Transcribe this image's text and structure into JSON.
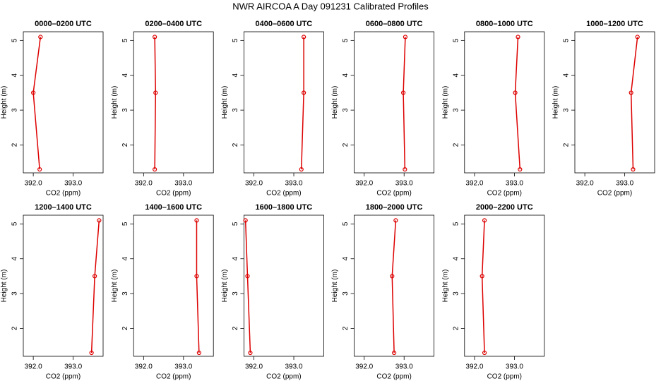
{
  "title": "NWR AIRCOA A  Day 091231  Calibrated Profiles",
  "chart_data": [
    {
      "type": "line",
      "title": "0000–0200 UTC",
      "x_label": "CO2 (ppm)",
      "y_label": "Height (m)",
      "x": [
        392.18,
        392.0,
        392.16
      ],
      "values": [
        5.1,
        3.5,
        1.3
      ],
      "color": "#dd0000",
      "xlim": [
        391.75,
        393.75
      ],
      "xticks": [
        {
          "value": 392,
          "label": "392.0"
        },
        {
          "value": 393,
          "label": "393.0"
        }
      ],
      "ylim": [
        1.2,
        5.25
      ],
      "yticks": [
        2,
        3,
        4,
        5
      ]
    },
    {
      "type": "line",
      "title": "0200–0400 UTC",
      "x_label": "CO2 (ppm)",
      "y_label": "Height (m)",
      "x": [
        392.28,
        392.3,
        392.28
      ],
      "values": [
        5.1,
        3.5,
        1.3
      ],
      "color": "#dd0000",
      "xlim": [
        391.75,
        393.75
      ],
      "xticks": [
        {
          "value": 392,
          "label": "392.0"
        },
        {
          "value": 393,
          "label": "393.0"
        }
      ],
      "ylim": [
        1.2,
        5.25
      ],
      "yticks": [
        2,
        3,
        4,
        5
      ]
    },
    {
      "type": "line",
      "title": "0400–0600 UTC",
      "x_label": "CO2 (ppm)",
      "y_label": "Height (m)",
      "x": [
        393.25,
        393.25,
        393.19
      ],
      "values": [
        5.1,
        3.5,
        1.3
      ],
      "color": "#dd0000",
      "xlim": [
        391.75,
        393.75
      ],
      "xticks": [
        {
          "value": 392,
          "label": "392.0"
        },
        {
          "value": 393,
          "label": "393.0"
        }
      ],
      "ylim": [
        1.2,
        5.25
      ],
      "yticks": [
        2,
        3,
        4,
        5
      ]
    },
    {
      "type": "line",
      "title": "0600–0800 UTC",
      "x_label": "CO2 (ppm)",
      "y_label": "Height (m)",
      "x": [
        393.03,
        392.98,
        393.02
      ],
      "values": [
        5.1,
        3.5,
        1.3
      ],
      "color": "#dd0000",
      "xlim": [
        391.75,
        393.75
      ],
      "xticks": [
        {
          "value": 392,
          "label": "392.0"
        },
        {
          "value": 393,
          "label": "393.0"
        }
      ],
      "ylim": [
        1.2,
        5.25
      ],
      "yticks": [
        2,
        3,
        4,
        5
      ]
    },
    {
      "type": "line",
      "title": "0800–1000 UTC",
      "x_label": "CO2 (ppm)",
      "y_label": "Height (m)",
      "x": [
        393.09,
        393.02,
        393.14
      ],
      "values": [
        5.1,
        3.5,
        1.3
      ],
      "color": "#dd0000",
      "xlim": [
        391.75,
        393.75
      ],
      "xticks": [
        {
          "value": 392,
          "label": "392.0"
        },
        {
          "value": 393,
          "label": "393.0"
        }
      ],
      "ylim": [
        1.2,
        5.25
      ],
      "yticks": [
        2,
        3,
        4,
        5
      ]
    },
    {
      "type": "line",
      "title": "1000–1200 UTC",
      "x_label": "CO2 (ppm)",
      "y_label": "Height (m)",
      "x": [
        393.32,
        393.16,
        393.21
      ],
      "values": [
        5.1,
        3.5,
        1.3
      ],
      "color": "#dd0000",
      "xlim": [
        391.75,
        393.75
      ],
      "xticks": [
        {
          "value": 392,
          "label": "392.0"
        },
        {
          "value": 393,
          "label": "393.0"
        }
      ],
      "ylim": [
        1.2,
        5.25
      ],
      "yticks": [
        2,
        3,
        4,
        5
      ]
    },
    {
      "type": "line",
      "title": "1200–1400 UTC",
      "x_label": "CO2 (ppm)",
      "y_label": "Height (m)",
      "x": [
        393.65,
        393.54,
        393.46
      ],
      "values": [
        5.1,
        3.5,
        1.3
      ],
      "color": "#dd0000",
      "xlim": [
        391.75,
        393.75
      ],
      "xticks": [
        {
          "value": 392,
          "label": "392.0"
        },
        {
          "value": 393,
          "label": "393.0"
        }
      ],
      "ylim": [
        1.2,
        5.25
      ],
      "yticks": [
        2,
        3,
        4,
        5
      ]
    },
    {
      "type": "line",
      "title": "1400–1600 UTC",
      "x_label": "CO2 (ppm)",
      "y_label": "Height (m)",
      "x": [
        393.33,
        393.33,
        393.39
      ],
      "values": [
        5.1,
        3.5,
        1.3
      ],
      "color": "#dd0000",
      "xlim": [
        391.75,
        393.75
      ],
      "xticks": [
        {
          "value": 392,
          "label": "392.0"
        },
        {
          "value": 393,
          "label": "393.0"
        }
      ],
      "ylim": [
        1.2,
        5.25
      ],
      "yticks": [
        2,
        3,
        4,
        5
      ]
    },
    {
      "type": "line",
      "title": "1600–1800 UTC",
      "x_label": "CO2 (ppm)",
      "y_label": "Height (m)",
      "x": [
        391.79,
        391.84,
        391.91
      ],
      "values": [
        5.1,
        3.5,
        1.3
      ],
      "color": "#dd0000",
      "xlim": [
        391.75,
        393.75
      ],
      "xticks": [
        {
          "value": 392,
          "label": "392.0"
        },
        {
          "value": 393,
          "label": "393.0"
        }
      ],
      "ylim": [
        1.2,
        5.25
      ],
      "yticks": [
        2,
        3,
        4,
        5
      ]
    },
    {
      "type": "line",
      "title": "1800–2000 UTC",
      "x_label": "CO2 (ppm)",
      "y_label": "Height (m)",
      "x": [
        392.79,
        392.7,
        392.75
      ],
      "values": [
        5.1,
        3.5,
        1.3
      ],
      "color": "#dd0000",
      "xlim": [
        391.75,
        393.75
      ],
      "xticks": [
        {
          "value": 392,
          "label": "392.0"
        },
        {
          "value": 393,
          "label": "393.0"
        }
      ],
      "ylim": [
        1.2,
        5.25
      ],
      "yticks": [
        2,
        3,
        4,
        5
      ]
    },
    {
      "type": "line",
      "title": "2000–2200 UTC",
      "x_label": "CO2 (ppm)",
      "y_label": "Height (m)",
      "x": [
        392.25,
        392.19,
        392.25
      ],
      "values": [
        5.1,
        3.5,
        1.3
      ],
      "color": "#dd0000",
      "xlim": [
        391.75,
        393.75
      ],
      "xticks": [
        {
          "value": 392,
          "label": "392.0"
        },
        {
          "value": 393,
          "label": "393.0"
        }
      ],
      "ylim": [
        1.2,
        5.25
      ],
      "yticks": [
        2,
        3,
        4,
        5
      ]
    }
  ]
}
